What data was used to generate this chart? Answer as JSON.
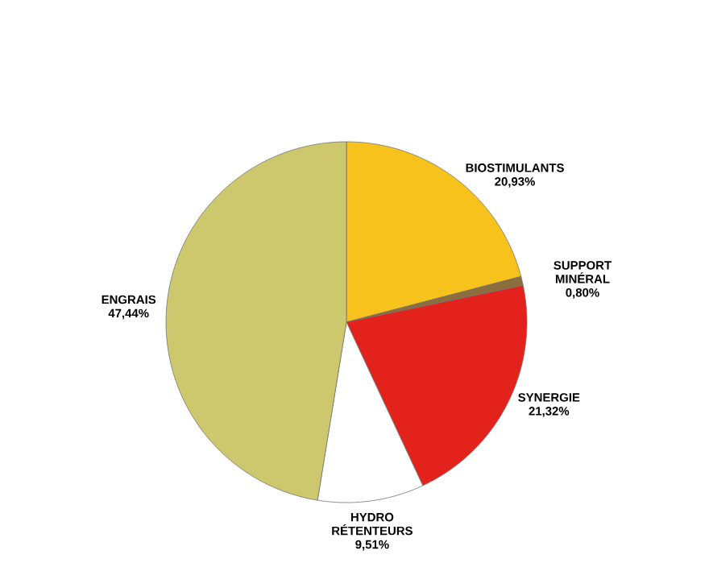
{
  "chart_data": {
    "type": "pie",
    "categories": [
      "BIOSTIMULANTS",
      "SUPPORT MINÉRAL",
      "SYNERGIE",
      "HYDRO RÉTENTEURS",
      "ENGRAIS"
    ],
    "values": [
      20.93,
      0.8,
      21.32,
      9.51,
      47.44
    ],
    "value_labels": [
      "20,93%",
      "0,80%",
      "21,32%",
      "9,51%",
      "47,44%"
    ],
    "colors": [
      "#f8c21d",
      "#8c6d3c",
      "#e3231b",
      "#ffffff",
      "#cdc76e"
    ]
  }
}
